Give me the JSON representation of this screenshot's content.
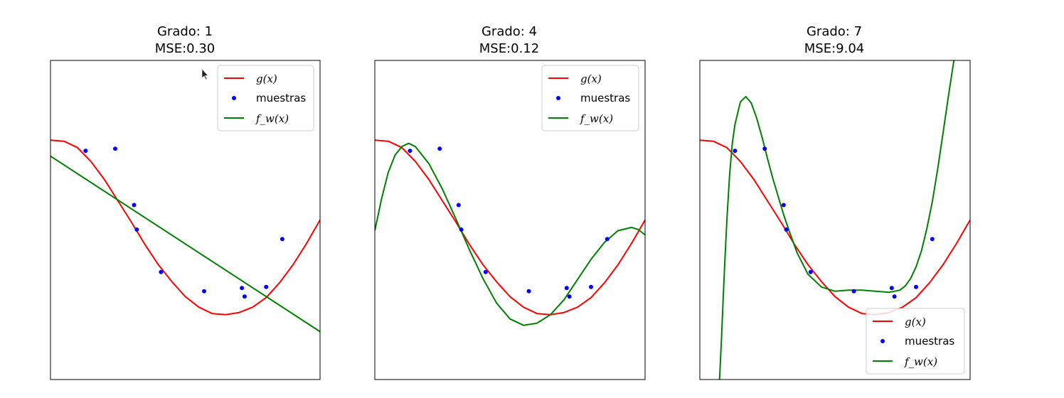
{
  "chart_data": [
    {
      "type": "line",
      "title": "Grado: 1",
      "subtitle": "MSE:0.30",
      "xlim": [
        0,
        1
      ],
      "ylim": [
        -1.5,
        1.5
      ],
      "legend_placement": "top-right",
      "series": [
        {
          "name": "g(x)",
          "kind": "line",
          "color": "#ff0000",
          "x": [
            0,
            0.05,
            0.1,
            0.15,
            0.2,
            0.25,
            0.3,
            0.35,
            0.4,
            0.45,
            0.5,
            0.55,
            0.6,
            0.65,
            0.7,
            0.75,
            0.8,
            0.85,
            0.9,
            0.95,
            1.0
          ],
          "y": [
            0.75,
            0.74,
            0.68,
            0.55,
            0.38,
            0.18,
            -0.02,
            -0.23,
            -0.42,
            -0.58,
            -0.72,
            -0.82,
            -0.88,
            -0.89,
            -0.87,
            -0.82,
            -0.73,
            -0.59,
            -0.42,
            -0.22,
            0.0
          ]
        },
        {
          "name": "muestras",
          "kind": "scatter",
          "color": "#0000ff",
          "x": [
            0.13,
            0.24,
            0.31,
            0.32,
            0.41,
            0.57,
            0.71,
            0.72,
            0.8,
            0.86
          ],
          "y": [
            0.65,
            0.67,
            0.14,
            -0.09,
            -0.49,
            -0.67,
            -0.64,
            -0.72,
            -0.63,
            -0.18
          ]
        },
        {
          "name": "f_w(x)",
          "kind": "line",
          "color": "#008000",
          "x": [
            0,
            1
          ],
          "y": [
            0.6,
            -1.05
          ]
        }
      ]
    },
    {
      "type": "line",
      "title": "Grado: 4",
      "subtitle": "MSE:0.12",
      "xlim": [
        0,
        1
      ],
      "ylim": [
        -1.5,
        1.5
      ],
      "legend_placement": "top-right",
      "series": [
        {
          "name": "g(x)",
          "kind": "line",
          "color": "#ff0000",
          "x": [
            0,
            0.05,
            0.1,
            0.15,
            0.2,
            0.25,
            0.3,
            0.35,
            0.4,
            0.45,
            0.5,
            0.55,
            0.6,
            0.65,
            0.7,
            0.75,
            0.8,
            0.85,
            0.9,
            0.95,
            1.0
          ],
          "y": [
            0.75,
            0.74,
            0.68,
            0.55,
            0.38,
            0.18,
            -0.02,
            -0.23,
            -0.42,
            -0.58,
            -0.72,
            -0.82,
            -0.88,
            -0.89,
            -0.87,
            -0.82,
            -0.73,
            -0.59,
            -0.42,
            -0.22,
            0.0
          ]
        },
        {
          "name": "muestras",
          "kind": "scatter",
          "color": "#0000ff",
          "x": [
            0.13,
            0.24,
            0.31,
            0.32,
            0.41,
            0.57,
            0.71,
            0.72,
            0.8,
            0.86
          ],
          "y": [
            0.65,
            0.67,
            0.14,
            -0.09,
            -0.49,
            -0.67,
            -0.64,
            -0.72,
            -0.63,
            -0.18
          ]
        },
        {
          "name": "f_w(x)",
          "kind": "line",
          "color": "#008000",
          "x": [
            0,
            0.025,
            0.05,
            0.075,
            0.1,
            0.125,
            0.15,
            0.2,
            0.25,
            0.3,
            0.35,
            0.4,
            0.45,
            0.5,
            0.55,
            0.6,
            0.65,
            0.7,
            0.75,
            0.8,
            0.85,
            0.9,
            0.95,
            0.975,
            1.0
          ],
          "y": [
            -0.1,
            0.2,
            0.45,
            0.61,
            0.69,
            0.72,
            0.69,
            0.53,
            0.29,
            0.01,
            -0.28,
            -0.55,
            -0.78,
            -0.93,
            -0.99,
            -0.97,
            -0.89,
            -0.75,
            -0.56,
            -0.37,
            -0.21,
            -0.1,
            -0.07,
            -0.09,
            -0.14
          ]
        }
      ]
    },
    {
      "type": "line",
      "title": "Grado: 7",
      "subtitle": "MSE:9.04",
      "xlim": [
        0,
        1
      ],
      "ylim": [
        -1.5,
        1.5
      ],
      "legend_placement": "bottom-right",
      "series": [
        {
          "name": "g(x)",
          "kind": "line",
          "color": "#ff0000",
          "x": [
            0,
            0.05,
            0.1,
            0.15,
            0.2,
            0.25,
            0.3,
            0.35,
            0.4,
            0.45,
            0.5,
            0.55,
            0.6,
            0.65,
            0.7,
            0.75,
            0.8,
            0.85,
            0.9,
            0.95,
            1.0
          ],
          "y": [
            0.75,
            0.74,
            0.68,
            0.55,
            0.38,
            0.18,
            -0.02,
            -0.23,
            -0.42,
            -0.58,
            -0.72,
            -0.82,
            -0.88,
            -0.89,
            -0.87,
            -0.82,
            -0.73,
            -0.59,
            -0.42,
            -0.22,
            0.0
          ]
        },
        {
          "name": "muestras",
          "kind": "scatter",
          "color": "#0000ff",
          "x": [
            0.13,
            0.24,
            0.31,
            0.32,
            0.41,
            0.57,
            0.71,
            0.72,
            0.8,
            0.86
          ],
          "y": [
            0.65,
            0.67,
            0.14,
            -0.09,
            -0.49,
            -0.67,
            -0.64,
            -0.72,
            -0.63,
            -0.18
          ]
        },
        {
          "name": "f_w(x)",
          "kind": "line",
          "color": "#008000",
          "x": [
            0.073,
            0.08,
            0.09,
            0.1,
            0.11,
            0.12,
            0.13,
            0.15,
            0.17,
            0.19,
            0.21,
            0.23,
            0.25,
            0.27,
            0.29,
            0.31,
            0.33,
            0.36,
            0.4,
            0.45,
            0.5,
            0.55,
            0.6,
            0.65,
            0.7,
            0.74,
            0.76,
            0.78,
            0.8,
            0.82,
            0.84,
            0.86,
            0.88,
            0.9,
            0.92,
            0.94
          ],
          "y": [
            -1.5,
            -1.12,
            -0.52,
            0.0,
            0.42,
            0.72,
            0.9,
            1.11,
            1.16,
            1.1,
            0.96,
            0.78,
            0.58,
            0.39,
            0.22,
            0.05,
            -0.1,
            -0.31,
            -0.51,
            -0.63,
            -0.67,
            -0.66,
            -0.66,
            -0.67,
            -0.68,
            -0.66,
            -0.62,
            -0.55,
            -0.44,
            -0.29,
            -0.08,
            0.17,
            0.48,
            0.82,
            1.17,
            1.5
          ]
        }
      ]
    }
  ]
}
